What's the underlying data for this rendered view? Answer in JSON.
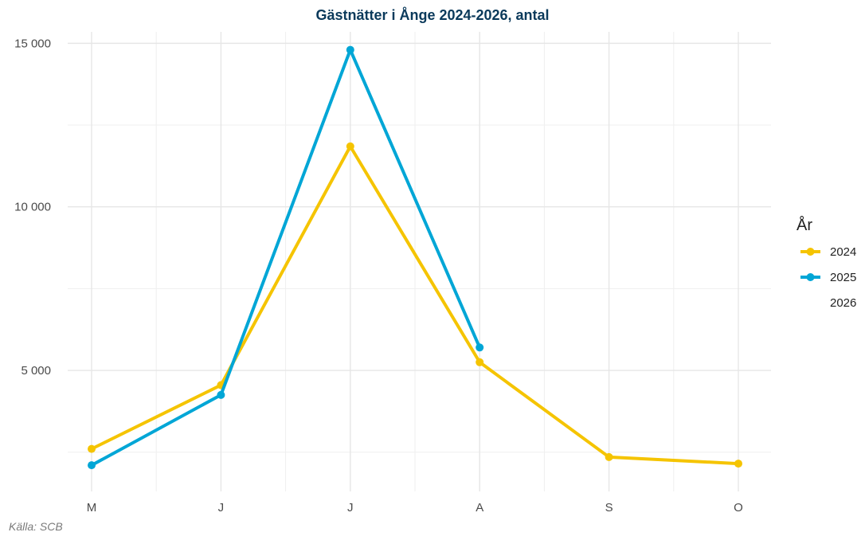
{
  "chart_data": {
    "type": "line",
    "title": "Gästnätter i Ånge 2024-2026, antal",
    "xlabel": "",
    "ylabel": "",
    "categories": [
      "M",
      "J",
      "J",
      "A",
      "S",
      "O"
    ],
    "ylim": [
      1300,
      15350
    ],
    "y_ticks": [
      5000,
      10000,
      15000
    ],
    "y_tick_labels": [
      "5 000",
      "10 000",
      "15 000"
    ],
    "grid": true,
    "legend": {
      "title": "År",
      "position": "right"
    },
    "series": [
      {
        "name": "2024",
        "color": "#f5c400",
        "values": [
          2600,
          4550,
          11850,
          5250,
          2350,
          2150
        ]
      },
      {
        "name": "2025",
        "color": "#00a6d6",
        "values": [
          2100,
          4250,
          14800,
          5700,
          null,
          null
        ]
      },
      {
        "name": "2026",
        "color": "#ffffff",
        "values": [
          null,
          null,
          null,
          null,
          null,
          null
        ]
      }
    ],
    "caption": "Källa: SCB"
  }
}
